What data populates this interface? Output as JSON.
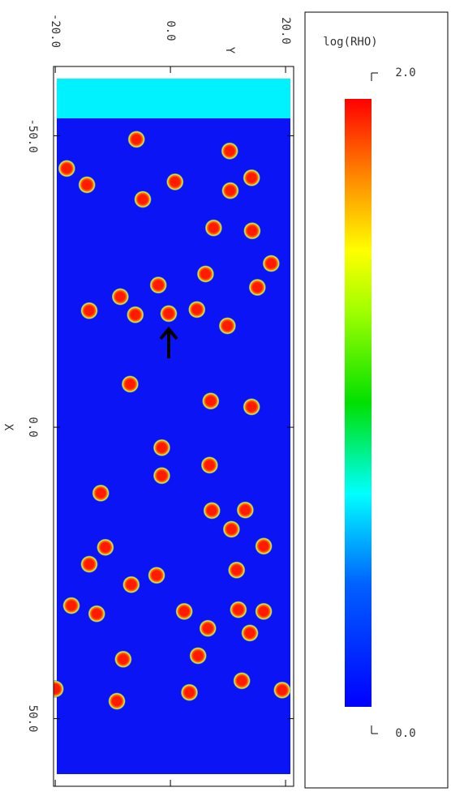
{
  "chart_data": {
    "type": "scatter",
    "xlabel": "X",
    "ylabel": "Y",
    "x": [
      -49.4,
      -47.4,
      -44.4,
      -42.8,
      -41.6,
      -42.1,
      -40.6,
      -39.1,
      -34.2,
      -33.7,
      -28.1,
      -26.3,
      -24.4,
      -24.0,
      -22.4,
      -20.0,
      -19.3,
      -19.5,
      -20.2,
      -17.4,
      -7.4,
      -4.5,
      -3.5,
      3.5,
      6.5,
      8.3,
      11.3,
      14.3,
      14.2,
      17.5,
      20.6,
      20.4,
      23.5,
      24.5,
      25.4,
      27.0,
      30.6,
      32.0,
      31.6,
      31.3,
      31.6,
      34.5,
      35.3,
      39.2,
      39.8,
      43.5,
      44.9,
      45.1,
      45.5,
      47.0
    ],
    "y": [
      -5.9,
      10.3,
      -18.0,
      14.1,
      -14.5,
      0.8,
      10.4,
      -4.8,
      7.5,
      14.2,
      17.5,
      6.1,
      -2.1,
      15.1,
      -8.7,
      -14.1,
      -6.1,
      -0.3,
      4.6,
      9.9,
      -7.0,
      7.0,
      14.1,
      -1.5,
      6.8,
      -1.5,
      -12.1,
      7.2,
      13.0,
      10.6,
      -11.3,
      16.2,
      -14.1,
      11.5,
      -2.4,
      -6.8,
      -17.2,
      -12.8,
      2.4,
      11.8,
      16.2,
      6.5,
      13.8,
      4.8,
      -8.2,
      12.4,
      -20.0,
      19.4,
      3.3,
      -9.3
    ],
    "color": "#ff1a00",
    "xlim": [
      -61.9,
      61.6
    ],
    "xticks": [
      {
        "value": -50,
        "label": "-50.0"
      },
      {
        "value": 0,
        "label": "0.0"
      },
      {
        "value": 50,
        "label": "50.0"
      }
    ],
    "ylim": [
      -20.3,
      21.4
    ],
    "yticks": [
      {
        "value": -20,
        "label": "-20.0"
      },
      {
        "value": 0,
        "label": "0.0"
      },
      {
        "value": 20,
        "label": "20.0"
      }
    ],
    "colorbar": {
      "label": "log(RHO)",
      "lim": [
        0,
        2
      ],
      "ticks": [
        {
          "value": 0,
          "label": "0.0"
        },
        {
          "value": 2,
          "label": "2.0"
        }
      ]
    }
  }
}
